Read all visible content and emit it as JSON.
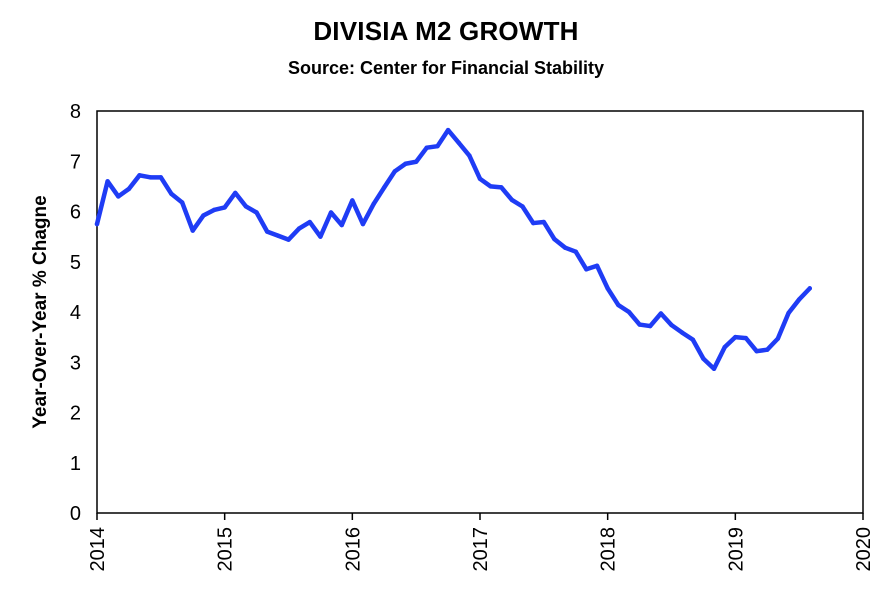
{
  "chart_data": {
    "type": "line",
    "title": "DIVISIA M2 GROWTH",
    "subtitle": "Source: Center for Financial Stability",
    "xlabel": "",
    "ylabel": "Year-Over-Year % Chagne",
    "xlim": [
      2014,
      2020
    ],
    "ylim": [
      0,
      8
    ],
    "x_ticks": [
      "2014",
      "2015",
      "2016",
      "2017",
      "2018",
      "2019",
      "2020"
    ],
    "y_ticks": [
      "0",
      "1",
      "2",
      "3",
      "4",
      "5",
      "6",
      "7",
      "8"
    ],
    "grid": false,
    "line_color": "#1f3cf5",
    "series": [
      {
        "name": "",
        "x": [
          2014.0,
          2014.083,
          2014.167,
          2014.25,
          2014.333,
          2014.417,
          2014.5,
          2014.583,
          2014.667,
          2014.75,
          2014.833,
          2014.917,
          2015.0,
          2015.083,
          2015.167,
          2015.25,
          2015.333,
          2015.417,
          2015.5,
          2015.583,
          2015.667,
          2015.75,
          2015.833,
          2015.917,
          2016.0,
          2016.083,
          2016.167,
          2016.25,
          2016.333,
          2016.417,
          2016.5,
          2016.583,
          2016.667,
          2016.75,
          2016.833,
          2016.917,
          2017.0,
          2017.083,
          2017.167,
          2017.25,
          2017.333,
          2017.417,
          2017.5,
          2017.583,
          2017.667,
          2017.75,
          2017.833,
          2017.917,
          2018.0,
          2018.083,
          2018.167,
          2018.25,
          2018.333,
          2018.417,
          2018.5,
          2018.583,
          2018.667,
          2018.75,
          2018.833,
          2018.917,
          2019.0,
          2019.083,
          2019.167,
          2019.25,
          2019.333,
          2019.417,
          2019.5,
          2019.583
        ],
        "y": [
          5.75,
          6.6,
          6.3,
          6.45,
          6.72,
          6.68,
          6.68,
          6.35,
          6.18,
          5.62,
          5.92,
          6.03,
          6.08,
          6.37,
          6.1,
          5.98,
          5.6,
          5.52,
          5.44,
          5.66,
          5.79,
          5.5,
          5.98,
          5.73,
          6.22,
          5.75,
          6.15,
          6.48,
          6.8,
          6.95,
          6.99,
          7.27,
          7.3,
          7.62,
          7.37,
          7.11,
          6.65,
          6.5,
          6.48,
          6.23,
          6.1,
          5.77,
          5.79,
          5.45,
          5.28,
          5.2,
          4.85,
          4.92,
          4.47,
          4.14,
          4.0,
          3.75,
          3.72,
          3.97,
          3.74,
          3.59,
          3.45,
          3.07,
          2.87,
          3.3,
          3.5,
          3.48,
          3.22,
          3.25,
          3.47,
          3.98,
          4.25,
          4.47
        ]
      }
    ]
  }
}
